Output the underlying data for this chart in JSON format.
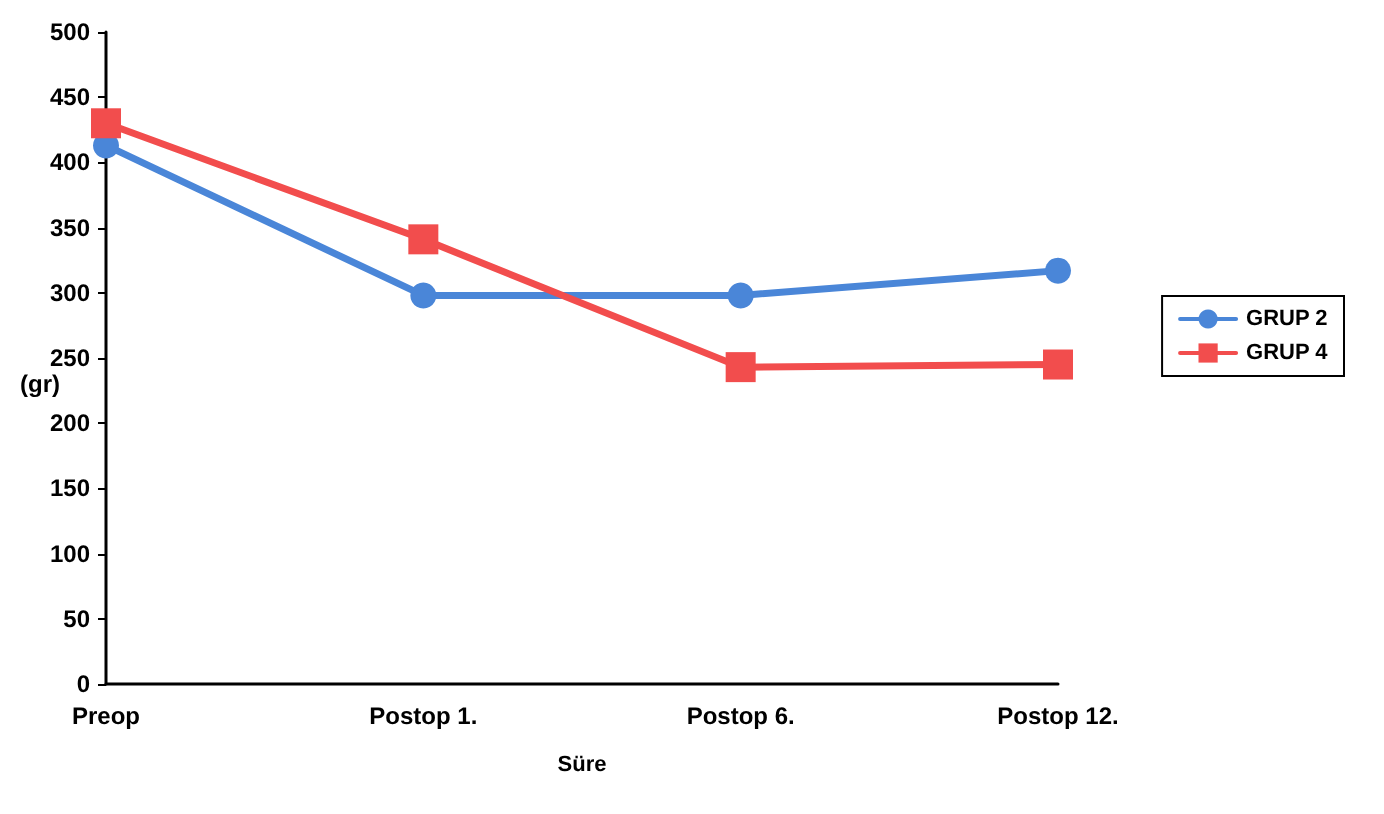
{
  "chart_data": {
    "type": "line",
    "xlabel": "Süre",
    "ylabel": "(gr)",
    "categories": [
      "Preop",
      "Postop 1.",
      "Postop 6.",
      "Postop 12."
    ],
    "series": [
      {
        "name": "GRUP 2",
        "color": "#4a86d8",
        "values": [
          413,
          298,
          298,
          317
        ],
        "marker": "circle"
      },
      {
        "name": "GRUP 4",
        "color": "#f24d4d",
        "values": [
          430,
          341,
          243,
          245
        ],
        "marker": "square"
      }
    ],
    "ylim": [
      0,
      500
    ],
    "yticks": [
      0,
      50,
      100,
      150,
      200,
      250,
      300,
      350,
      400,
      450,
      500
    ],
    "grid": false,
    "legend": "right",
    "line_style": "solid"
  }
}
